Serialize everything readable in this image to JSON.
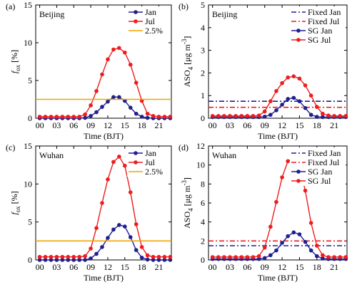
{
  "colors": {
    "jan": "#1f1f8f",
    "jul": "#ee1c1c",
    "ref": "#f0a400"
  },
  "chart_data": [
    {
      "panel": "(a)",
      "city": "Beijing",
      "type": "line",
      "xlabel": "Time (BJT)",
      "ylabel": "f_ox [%]",
      "ylabel_main": "f",
      "ylabel_sub": "ox",
      "ylabel_unit": " [%]",
      "xticks": [
        "00",
        "03",
        "06",
        "09",
        "12",
        "15",
        "18",
        "21"
      ],
      "yticks": [
        "0",
        "5",
        "10",
        "15"
      ],
      "ylim": [
        0,
        15
      ],
      "xlim": [
        -0.7,
        23.2
      ],
      "x": [
        0,
        1,
        2,
        3,
        4,
        5,
        6,
        7,
        8,
        9,
        10,
        11,
        12,
        13,
        14,
        15,
        16,
        17,
        18,
        19,
        20,
        21,
        22,
        23
      ],
      "series": [
        {
          "name": "Jan",
          "color": "#1f1f8f",
          "values": [
            0,
            0,
            0,
            0,
            0,
            0,
            0,
            0,
            0.05,
            0.3,
            0.8,
            1.5,
            2.2,
            2.8,
            2.8,
            2.3,
            1.4,
            0.6,
            0.2,
            0.05,
            0,
            0,
            0,
            0
          ]
        },
        {
          "name": "Jul",
          "color": "#ee1c1c",
          "values": [
            0.2,
            0.2,
            0.2,
            0.2,
            0.2,
            0.2,
            0.2,
            0.2,
            0.5,
            1.7,
            3.6,
            5.8,
            7.8,
            9.1,
            9.3,
            8.7,
            7.1,
            4.7,
            2.3,
            0.6,
            0.3,
            0.2,
            0.2,
            0.2
          ]
        },
        {
          "name": "2.5%",
          "color": "#f0a400",
          "reference": 2.5
        }
      ],
      "legend": [
        "Jan",
        "Jul",
        "2.5%"
      ]
    },
    {
      "panel": "(b)",
      "city": "Beijing",
      "type": "line",
      "xlabel": "Time (BJT)",
      "ylabel": "ASO4 [μg m-3]",
      "ylabel_main": "ASO",
      "ylabel_sub": "4",
      "ylabel_unit": " [μg m",
      "ylabel_sup": "-3",
      "ylabel_end": "]",
      "xticks": [
        "00",
        "03",
        "06",
        "09",
        "12",
        "15",
        "18",
        "21"
      ],
      "yticks": [
        "0",
        "1",
        "2",
        "3",
        "4",
        "5"
      ],
      "ylim": [
        0,
        5
      ],
      "xlim": [
        -0.7,
        23.2
      ],
      "x": [
        0,
        1,
        2,
        3,
        4,
        5,
        6,
        7,
        8,
        9,
        10,
        11,
        12,
        13,
        14,
        15,
        16,
        17,
        18,
        19,
        20,
        21,
        22,
        23
      ],
      "series": [
        {
          "name": "Fixed Jan",
          "color": "#1f1f8f",
          "dashed": true,
          "reference": 0.75
        },
        {
          "name": "Fixed Jul",
          "color": "#ee1c1c",
          "dashed": true,
          "reference": 0.48
        },
        {
          "name": "SG Jan",
          "color": "#1f1f8f",
          "values": [
            0.05,
            0.05,
            0.05,
            0.05,
            0.05,
            0.05,
            0.05,
            0.05,
            0.05,
            0.07,
            0.15,
            0.35,
            0.6,
            0.85,
            0.9,
            0.75,
            0.45,
            0.15,
            0.06,
            0.05,
            0.05,
            0.05,
            0.05,
            0.05
          ]
        },
        {
          "name": "SG Jul",
          "color": "#ee1c1c",
          "values": [
            0.1,
            0.1,
            0.1,
            0.1,
            0.1,
            0.1,
            0.1,
            0.1,
            0.12,
            0.3,
            0.75,
            1.2,
            1.55,
            1.8,
            1.85,
            1.75,
            1.45,
            1.0,
            0.5,
            0.2,
            0.12,
            0.1,
            0.1,
            0.1
          ]
        }
      ],
      "legend": [
        "Fixed Jan",
        "Fixed Jul",
        "SG Jan",
        "SG Jul"
      ]
    },
    {
      "panel": "(c)",
      "city": "Wuhan",
      "type": "line",
      "xlabel": "Time (BJT)",
      "ylabel": "f_ox [%]",
      "ylabel_main": "f",
      "ylabel_sub": "ox",
      "ylabel_unit": " [%]",
      "xticks": [
        "00",
        "03",
        "06",
        "09",
        "12",
        "15",
        "18",
        "21"
      ],
      "yticks": [
        "0",
        "5",
        "10",
        "15"
      ],
      "ylim": [
        0,
        15
      ],
      "xlim": [
        -0.7,
        23.2
      ],
      "x": [
        0,
        1,
        2,
        3,
        4,
        5,
        6,
        7,
        8,
        9,
        10,
        11,
        12,
        13,
        14,
        15,
        16,
        17,
        18,
        19,
        20,
        21,
        22,
        23
      ],
      "series": [
        {
          "name": "Jan",
          "color": "#1f1f8f",
          "values": [
            0,
            0,
            0,
            0,
            0,
            0,
            0,
            0,
            0,
            0.2,
            0.8,
            1.7,
            2.9,
            4.0,
            4.6,
            4.4,
            3.0,
            1.3,
            0.3,
            0.05,
            0,
            0,
            0,
            0
          ]
        },
        {
          "name": "Jul",
          "color": "#ee1c1c",
          "values": [
            0.4,
            0.4,
            0.4,
            0.4,
            0.4,
            0.4,
            0.4,
            0.4,
            0.5,
            1.5,
            4.2,
            7.5,
            10.6,
            12.9,
            13.6,
            12.4,
            8.9,
            4.7,
            1.7,
            0.6,
            0.4,
            0.4,
            0.4,
            0.4
          ]
        },
        {
          "name": "2.5%",
          "color": "#f0a400",
          "reference": 2.5
        }
      ],
      "legend": [
        "Jan",
        "Jul",
        "2.5%"
      ]
    },
    {
      "panel": "(d)",
      "city": "Wuhan",
      "type": "line",
      "xlabel": "Time (BJT)",
      "ylabel": "ASO4 [μg m-3]",
      "ylabel_main": "ASO",
      "ylabel_sub": "4",
      "ylabel_unit": " [μg m",
      "ylabel_sup": "-3",
      "ylabel_end": "]",
      "xticks": [
        "00",
        "03",
        "06",
        "09",
        "12",
        "15",
        "18",
        "21"
      ],
      "yticks": [
        "0",
        "2",
        "4",
        "6",
        "8",
        "10",
        "12"
      ],
      "ylim": [
        0,
        12
      ],
      "xlim": [
        -0.7,
        23.2
      ],
      "x": [
        0,
        1,
        2,
        3,
        4,
        5,
        6,
        7,
        8,
        9,
        10,
        11,
        12,
        13,
        14,
        15,
        16,
        17,
        18,
        19,
        20,
        21,
        22,
        23
      ],
      "series": [
        {
          "name": "Fixed Jan",
          "color": "#1f1f8f",
          "dashed": true,
          "reference": 1.5
        },
        {
          "name": "Fixed Jul",
          "color": "#ee1c1c",
          "dashed": true,
          "reference": 2.0
        },
        {
          "name": "SG Jan",
          "color": "#1f1f8f",
          "values": [
            0.1,
            0.1,
            0.1,
            0.1,
            0.1,
            0.1,
            0.1,
            0.1,
            0.1,
            0.2,
            0.5,
            1.0,
            1.8,
            2.5,
            2.9,
            2.7,
            1.9,
            1.0,
            0.4,
            0.15,
            0.1,
            0.1,
            0.1,
            0.1
          ]
        },
        {
          "name": "SG Jul",
          "color": "#ee1c1c",
          "values": [
            0.3,
            0.3,
            0.3,
            0.3,
            0.3,
            0.3,
            0.3,
            0.3,
            0.4,
            1.3,
            3.5,
            6.1,
            8.7,
            10.4,
            10.7,
            9.8,
            7.3,
            3.9,
            1.5,
            0.5,
            0.3,
            0.3,
            0.3,
            0.3
          ]
        }
      ],
      "legend": [
        "Fixed Jan",
        "Fixed Jul",
        "SG Jan",
        "SG Jul"
      ]
    }
  ]
}
